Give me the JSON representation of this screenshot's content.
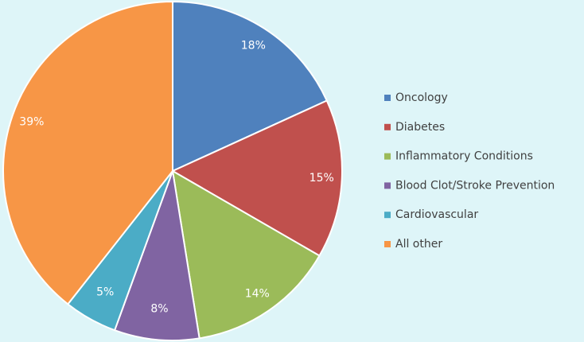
{
  "chart_data": {
    "type": "pie",
    "categories": [
      "Oncology",
      "Diabetes",
      "Inflammatory Conditions",
      "Blood Clot/Stroke Prevention",
      "Cardiovascular",
      "All other"
    ],
    "values": [
      18,
      15,
      14,
      8,
      5,
      39
    ],
    "value_labels": [
      "18%",
      "15%",
      "14%",
      "8%",
      "5%",
      "39%"
    ],
    "colors": [
      "#4f81bd",
      "#c0504d",
      "#9bbb59",
      "#8064a2",
      "#4bacc6",
      "#f79646"
    ],
    "legend": "right"
  }
}
